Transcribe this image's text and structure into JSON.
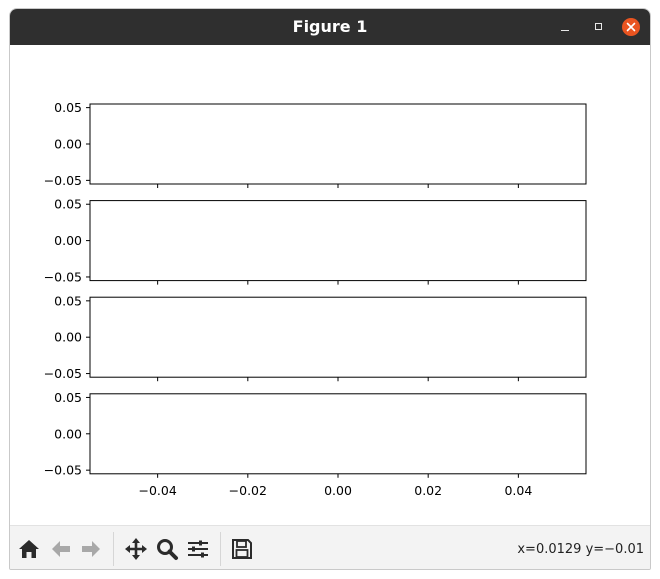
{
  "window": {
    "title": "Figure 1",
    "close_color": "#e95420",
    "titlebar_color": "#2f2f2f"
  },
  "toolbar": {
    "buttons": [
      "home-icon",
      "back-icon",
      "forward-icon",
      "pan-icon",
      "zoom-icon",
      "configure-subplots-icon",
      "save-icon"
    ],
    "coords": "x=0.0129 y=−0.01"
  },
  "chart_data": [
    {
      "type": "line",
      "title": "",
      "xlabel": "",
      "ylabel": "",
      "series": [],
      "xlim": [
        -0.055,
        0.055
      ],
      "ylim": [
        -0.055,
        0.055
      ],
      "yticks": [
        "0.05",
        "0.00",
        "−0.05"
      ],
      "yticks_values": [
        0.05,
        0.0,
        -0.05
      ],
      "xticks_values": [
        -0.04,
        -0.02,
        0.0,
        0.02,
        0.04
      ],
      "xticklabels_visible": false
    },
    {
      "type": "line",
      "title": "",
      "xlabel": "",
      "ylabel": "",
      "series": [],
      "xlim": [
        -0.055,
        0.055
      ],
      "ylim": [
        -0.055,
        0.055
      ],
      "yticks": [
        "0.05",
        "0.00",
        "−0.05"
      ],
      "yticks_values": [
        0.05,
        0.0,
        -0.05
      ],
      "xticks_values": [
        -0.04,
        -0.02,
        0.0,
        0.02,
        0.04
      ],
      "xticklabels_visible": false
    },
    {
      "type": "line",
      "title": "",
      "xlabel": "",
      "ylabel": "",
      "series": [],
      "xlim": [
        -0.055,
        0.055
      ],
      "ylim": [
        -0.055,
        0.055
      ],
      "yticks": [
        "0.05",
        "0.00",
        "−0.05"
      ],
      "yticks_values": [
        0.05,
        0.0,
        -0.05
      ],
      "xticks_values": [
        -0.04,
        -0.02,
        0.0,
        0.02,
        0.04
      ],
      "xticklabels_visible": false
    },
    {
      "type": "line",
      "title": "",
      "xlabel": "",
      "ylabel": "",
      "series": [],
      "xlim": [
        -0.055,
        0.055
      ],
      "ylim": [
        -0.055,
        0.055
      ],
      "yticks": [
        "0.05",
        "0.00",
        "−0.05"
      ],
      "yticks_values": [
        0.05,
        0.0,
        -0.05
      ],
      "xticks_values": [
        -0.04,
        -0.02,
        0.0,
        0.02,
        0.04
      ],
      "xticks": [
        "−0.04",
        "−0.02",
        "0.00",
        "0.02",
        "0.04"
      ],
      "xticklabels_visible": true
    }
  ]
}
